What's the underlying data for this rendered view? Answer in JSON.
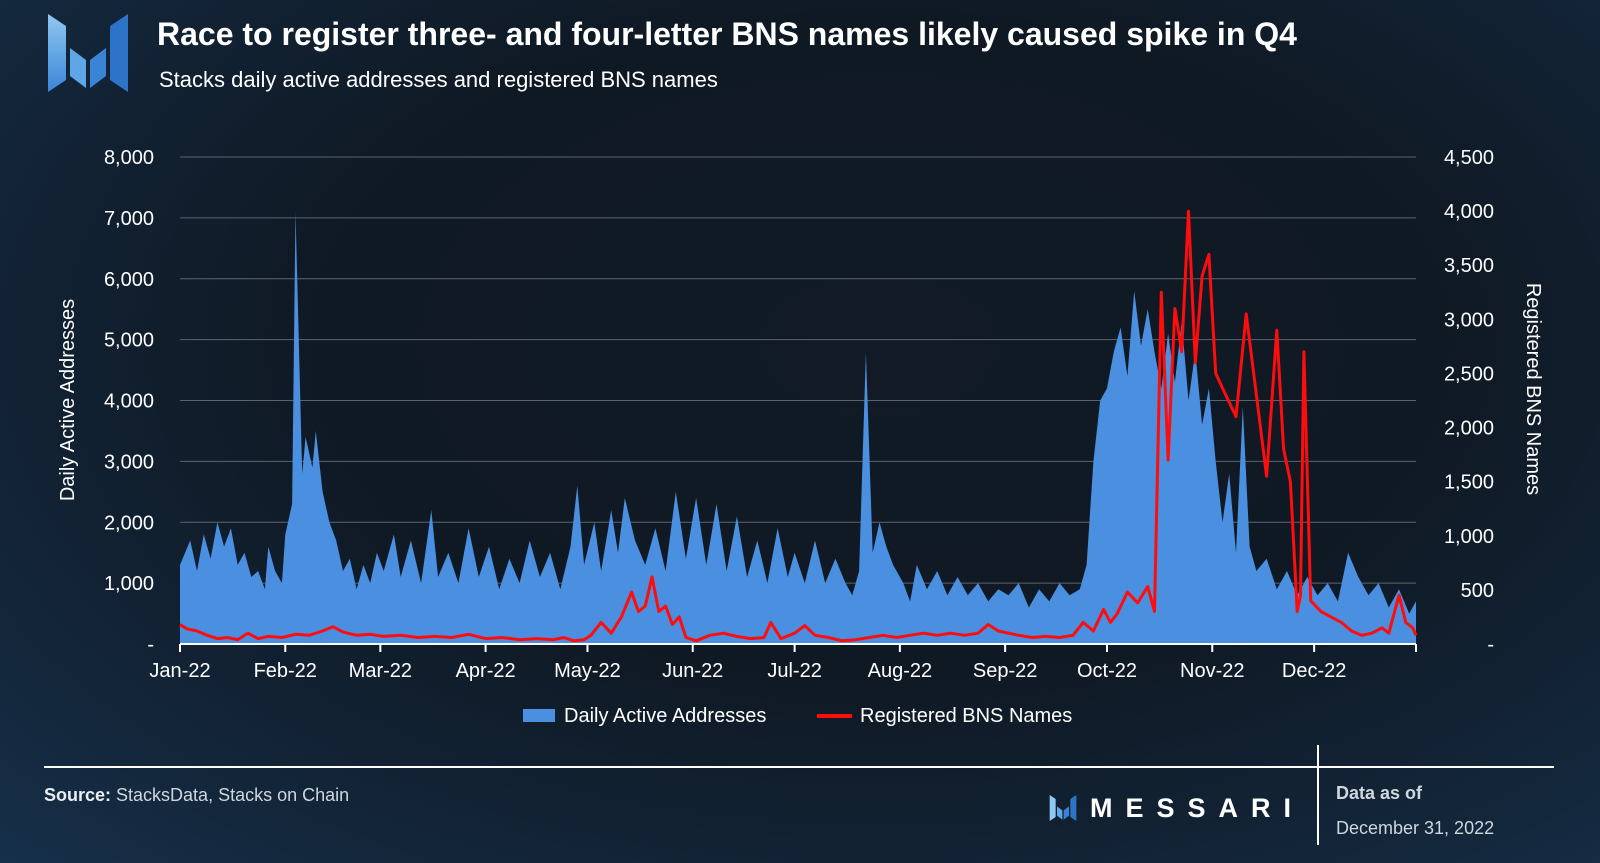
{
  "header": {
    "title": "Race to register three- and four-letter BNS names likely caused spike in Q4",
    "subtitle": "Stacks daily active addresses and registered BNS names"
  },
  "footer": {
    "source_label": "Source:",
    "source_text": " StacksData, Stacks on Chain",
    "brand": "MESSARI",
    "data_as_of_label": "Data as of",
    "data_as_of_date": "December 31, 2022"
  },
  "colors": {
    "area": "#4a8fe0",
    "line": "#ff0d0d",
    "grid": "#5a6470",
    "text": "#ffffff"
  },
  "chart_data": {
    "type": "area+line",
    "x_ticks": [
      "Jan-22",
      "Feb-22",
      "Mar-22",
      "Apr-22",
      "May-22",
      "Jun-22",
      "Jul-22",
      "Aug-22",
      "Sep-22",
      "Oct-22",
      "Nov-22",
      "Dec-22"
    ],
    "x_start": "2022-01-01",
    "x_end": "2022-12-31",
    "y_left": {
      "label": "Daily Active Addresses",
      "range": [
        0,
        8000
      ],
      "ticks": [
        "-",
        "1,000",
        "2,000",
        "3,000",
        "4,000",
        "5,000",
        "6,000",
        "7,000",
        "8,000"
      ]
    },
    "y_right": {
      "label": "Registered BNS Names",
      "range": [
        0,
        4500
      ],
      "ticks": [
        "-",
        "500",
        "1,000",
        "1,500",
        "2,000",
        "2,500",
        "3,000",
        "3,500",
        "4,000",
        "4,500"
      ]
    },
    "grid": true,
    "legend_position": "bottom",
    "series": [
      {
        "name": "Daily Active Addresses",
        "axis": "left",
        "kind": "area",
        "points": [
          [
            "2022-01-01",
            1300
          ],
          [
            "2022-01-04",
            1700
          ],
          [
            "2022-01-06",
            1200
          ],
          [
            "2022-01-08",
            1800
          ],
          [
            "2022-01-10",
            1400
          ],
          [
            "2022-01-12",
            2000
          ],
          [
            "2022-01-14",
            1600
          ],
          [
            "2022-01-16",
            1900
          ],
          [
            "2022-01-18",
            1300
          ],
          [
            "2022-01-20",
            1500
          ],
          [
            "2022-01-22",
            1100
          ],
          [
            "2022-01-24",
            1200
          ],
          [
            "2022-01-26",
            900
          ],
          [
            "2022-01-27",
            1600
          ],
          [
            "2022-01-29",
            1200
          ],
          [
            "2022-01-31",
            1000
          ],
          [
            "2022-02-01",
            1800
          ],
          [
            "2022-02-03",
            2300
          ],
          [
            "2022-02-04",
            7100
          ],
          [
            "2022-02-06",
            2800
          ],
          [
            "2022-02-07",
            3400
          ],
          [
            "2022-02-09",
            2900
          ],
          [
            "2022-02-10",
            3500
          ],
          [
            "2022-02-12",
            2500
          ],
          [
            "2022-02-14",
            2000
          ],
          [
            "2022-02-16",
            1700
          ],
          [
            "2022-02-18",
            1200
          ],
          [
            "2022-02-20",
            1400
          ],
          [
            "2022-02-22",
            900
          ],
          [
            "2022-02-24",
            1300
          ],
          [
            "2022-02-26",
            1000
          ],
          [
            "2022-02-28",
            1500
          ],
          [
            "2022-03-02",
            1200
          ],
          [
            "2022-03-05",
            1800
          ],
          [
            "2022-03-07",
            1100
          ],
          [
            "2022-03-10",
            1700
          ],
          [
            "2022-03-13",
            1000
          ],
          [
            "2022-03-16",
            2200
          ],
          [
            "2022-03-18",
            1100
          ],
          [
            "2022-03-21",
            1500
          ],
          [
            "2022-03-24",
            1000
          ],
          [
            "2022-03-27",
            1900
          ],
          [
            "2022-03-30",
            1100
          ],
          [
            "2022-04-02",
            1600
          ],
          [
            "2022-04-05",
            900
          ],
          [
            "2022-04-08",
            1400
          ],
          [
            "2022-04-11",
            1000
          ],
          [
            "2022-04-14",
            1700
          ],
          [
            "2022-04-17",
            1100
          ],
          [
            "2022-04-20",
            1500
          ],
          [
            "2022-04-23",
            900
          ],
          [
            "2022-04-26",
            1600
          ],
          [
            "2022-04-28",
            2600
          ],
          [
            "2022-04-30",
            1300
          ],
          [
            "2022-05-03",
            2000
          ],
          [
            "2022-05-05",
            1200
          ],
          [
            "2022-05-08",
            2200
          ],
          [
            "2022-05-10",
            1500
          ],
          [
            "2022-05-12",
            2400
          ],
          [
            "2022-05-15",
            1700
          ],
          [
            "2022-05-18",
            1300
          ],
          [
            "2022-05-21",
            1900
          ],
          [
            "2022-05-24",
            1200
          ],
          [
            "2022-05-27",
            2500
          ],
          [
            "2022-05-30",
            1400
          ],
          [
            "2022-06-02",
            2400
          ],
          [
            "2022-06-05",
            1300
          ],
          [
            "2022-06-08",
            2300
          ],
          [
            "2022-06-11",
            1200
          ],
          [
            "2022-06-14",
            2100
          ],
          [
            "2022-06-17",
            1100
          ],
          [
            "2022-06-20",
            1700
          ],
          [
            "2022-06-23",
            1000
          ],
          [
            "2022-06-26",
            1900
          ],
          [
            "2022-06-29",
            1100
          ],
          [
            "2022-07-01",
            1500
          ],
          [
            "2022-07-04",
            1000
          ],
          [
            "2022-07-07",
            1700
          ],
          [
            "2022-07-10",
            1000
          ],
          [
            "2022-07-13",
            1400
          ],
          [
            "2022-07-16",
            1000
          ],
          [
            "2022-07-18",
            800
          ],
          [
            "2022-07-20",
            1200
          ],
          [
            "2022-07-22",
            4800
          ],
          [
            "2022-07-24",
            1500
          ],
          [
            "2022-07-26",
            2000
          ],
          [
            "2022-07-28",
            1600
          ],
          [
            "2022-07-30",
            1300
          ],
          [
            "2022-08-02",
            1000
          ],
          [
            "2022-08-04",
            700
          ],
          [
            "2022-08-06",
            1300
          ],
          [
            "2022-08-09",
            900
          ],
          [
            "2022-08-12",
            1200
          ],
          [
            "2022-08-15",
            800
          ],
          [
            "2022-08-18",
            1100
          ],
          [
            "2022-08-21",
            800
          ],
          [
            "2022-08-24",
            1000
          ],
          [
            "2022-08-27",
            700
          ],
          [
            "2022-08-30",
            900
          ],
          [
            "2022-09-02",
            800
          ],
          [
            "2022-09-05",
            1000
          ],
          [
            "2022-09-08",
            600
          ],
          [
            "2022-09-11",
            900
          ],
          [
            "2022-09-14",
            700
          ],
          [
            "2022-09-17",
            1000
          ],
          [
            "2022-09-20",
            800
          ],
          [
            "2022-09-23",
            900
          ],
          [
            "2022-09-25",
            1300
          ],
          [
            "2022-09-27",
            3000
          ],
          [
            "2022-09-29",
            4000
          ],
          [
            "2022-10-01",
            4200
          ],
          [
            "2022-10-03",
            4800
          ],
          [
            "2022-10-05",
            5200
          ],
          [
            "2022-10-07",
            4400
          ],
          [
            "2022-10-09",
            5800
          ],
          [
            "2022-10-11",
            4900
          ],
          [
            "2022-10-13",
            5500
          ],
          [
            "2022-10-15",
            4800
          ],
          [
            "2022-10-17",
            4200
          ],
          [
            "2022-10-19",
            5100
          ],
          [
            "2022-10-21",
            4300
          ],
          [
            "2022-10-23",
            5300
          ],
          [
            "2022-10-25",
            4000
          ],
          [
            "2022-10-27",
            4800
          ],
          [
            "2022-10-29",
            3600
          ],
          [
            "2022-10-31",
            4200
          ],
          [
            "2022-11-02",
            3000
          ],
          [
            "2022-11-04",
            2000
          ],
          [
            "2022-11-06",
            2800
          ],
          [
            "2022-11-08",
            1500
          ],
          [
            "2022-11-10",
            3900
          ],
          [
            "2022-11-12",
            1600
          ],
          [
            "2022-11-14",
            1200
          ],
          [
            "2022-11-17",
            1400
          ],
          [
            "2022-11-20",
            900
          ],
          [
            "2022-11-23",
            1200
          ],
          [
            "2022-11-26",
            800
          ],
          [
            "2022-11-29",
            1100
          ],
          [
            "2022-12-02",
            800
          ],
          [
            "2022-12-05",
            1000
          ],
          [
            "2022-12-08",
            700
          ],
          [
            "2022-12-11",
            1500
          ],
          [
            "2022-12-14",
            1100
          ],
          [
            "2022-12-17",
            800
          ],
          [
            "2022-12-20",
            1000
          ],
          [
            "2022-12-23",
            600
          ],
          [
            "2022-12-26",
            900
          ],
          [
            "2022-12-29",
            500
          ],
          [
            "2022-12-31",
            700
          ]
        ]
      },
      {
        "name": "Registered BNS Names",
        "axis": "right",
        "kind": "line",
        "points": [
          [
            "2022-01-01",
            180
          ],
          [
            "2022-01-03",
            140
          ],
          [
            "2022-01-06",
            120
          ],
          [
            "2022-01-09",
            80
          ],
          [
            "2022-01-12",
            50
          ],
          [
            "2022-01-15",
            60
          ],
          [
            "2022-01-18",
            40
          ],
          [
            "2022-01-21",
            100
          ],
          [
            "2022-01-24",
            50
          ],
          [
            "2022-01-27",
            70
          ],
          [
            "2022-01-31",
            60
          ],
          [
            "2022-02-04",
            90
          ],
          [
            "2022-02-08",
            80
          ],
          [
            "2022-02-12",
            120
          ],
          [
            "2022-02-15",
            160
          ],
          [
            "2022-02-18",
            110
          ],
          [
            "2022-02-22",
            80
          ],
          [
            "2022-02-26",
            90
          ],
          [
            "2022-03-02",
            70
          ],
          [
            "2022-03-07",
            80
          ],
          [
            "2022-03-12",
            60
          ],
          [
            "2022-03-17",
            70
          ],
          [
            "2022-03-22",
            60
          ],
          [
            "2022-03-27",
            90
          ],
          [
            "2022-04-01",
            50
          ],
          [
            "2022-04-06",
            60
          ],
          [
            "2022-04-11",
            40
          ],
          [
            "2022-04-16",
            50
          ],
          [
            "2022-04-21",
            40
          ],
          [
            "2022-04-24",
            60
          ],
          [
            "2022-04-27",
            30
          ],
          [
            "2022-04-30",
            40
          ],
          [
            "2022-05-02",
            80
          ],
          [
            "2022-05-05",
            200
          ],
          [
            "2022-05-08",
            100
          ],
          [
            "2022-05-11",
            250
          ],
          [
            "2022-05-14",
            480
          ],
          [
            "2022-05-16",
            300
          ],
          [
            "2022-05-18",
            350
          ],
          [
            "2022-05-20",
            620
          ],
          [
            "2022-05-22",
            300
          ],
          [
            "2022-05-24",
            350
          ],
          [
            "2022-05-26",
            180
          ],
          [
            "2022-05-28",
            250
          ],
          [
            "2022-05-30",
            60
          ],
          [
            "2022-06-02",
            30
          ],
          [
            "2022-06-06",
            80
          ],
          [
            "2022-06-10",
            100
          ],
          [
            "2022-06-14",
            70
          ],
          [
            "2022-06-18",
            50
          ],
          [
            "2022-06-22",
            60
          ],
          [
            "2022-06-24",
            200
          ],
          [
            "2022-06-27",
            50
          ],
          [
            "2022-07-01",
            100
          ],
          [
            "2022-07-04",
            170
          ],
          [
            "2022-07-07",
            80
          ],
          [
            "2022-07-11",
            60
          ],
          [
            "2022-07-15",
            30
          ],
          [
            "2022-07-19",
            40
          ],
          [
            "2022-07-23",
            60
          ],
          [
            "2022-07-27",
            80
          ],
          [
            "2022-07-31",
            60
          ],
          [
            "2022-08-04",
            80
          ],
          [
            "2022-08-08",
            100
          ],
          [
            "2022-08-12",
            80
          ],
          [
            "2022-08-16",
            100
          ],
          [
            "2022-08-20",
            80
          ],
          [
            "2022-08-24",
            100
          ],
          [
            "2022-08-27",
            180
          ],
          [
            "2022-08-30",
            120
          ],
          [
            "2022-09-02",
            100
          ],
          [
            "2022-09-05",
            80
          ],
          [
            "2022-09-09",
            60
          ],
          [
            "2022-09-13",
            70
          ],
          [
            "2022-09-17",
            60
          ],
          [
            "2022-09-21",
            80
          ],
          [
            "2022-09-24",
            200
          ],
          [
            "2022-09-27",
            120
          ],
          [
            "2022-09-30",
            320
          ],
          [
            "2022-10-02",
            200
          ],
          [
            "2022-10-04",
            280
          ],
          [
            "2022-10-07",
            480
          ],
          [
            "2022-10-10",
            380
          ],
          [
            "2022-10-13",
            530
          ],
          [
            "2022-10-15",
            300
          ],
          [
            "2022-10-17",
            3250
          ],
          [
            "2022-10-19",
            1700
          ],
          [
            "2022-10-21",
            3100
          ],
          [
            "2022-10-23",
            2700
          ],
          [
            "2022-10-25",
            4000
          ],
          [
            "2022-10-27",
            2600
          ],
          [
            "2022-10-29",
            3400
          ],
          [
            "2022-10-31",
            3600
          ],
          [
            "2022-11-02",
            2500
          ],
          [
            "2022-11-05",
            2300
          ],
          [
            "2022-11-08",
            2100
          ],
          [
            "2022-11-11",
            3050
          ],
          [
            "2022-11-14",
            2300
          ],
          [
            "2022-11-17",
            1550
          ],
          [
            "2022-11-20",
            2900
          ],
          [
            "2022-11-22",
            1800
          ],
          [
            "2022-11-24",
            1500
          ],
          [
            "2022-11-26",
            300
          ],
          [
            "2022-11-27",
            450
          ],
          [
            "2022-11-28",
            2700
          ],
          [
            "2022-11-30",
            400
          ],
          [
            "2022-12-03",
            300
          ],
          [
            "2022-12-06",
            250
          ],
          [
            "2022-12-09",
            200
          ],
          [
            "2022-12-12",
            120
          ],
          [
            "2022-12-15",
            80
          ],
          [
            "2022-12-18",
            100
          ],
          [
            "2022-12-21",
            150
          ],
          [
            "2022-12-23",
            100
          ],
          [
            "2022-12-26",
            450
          ],
          [
            "2022-12-28",
            200
          ],
          [
            "2022-12-30",
            150
          ],
          [
            "2022-12-31",
            80
          ]
        ]
      }
    ]
  }
}
